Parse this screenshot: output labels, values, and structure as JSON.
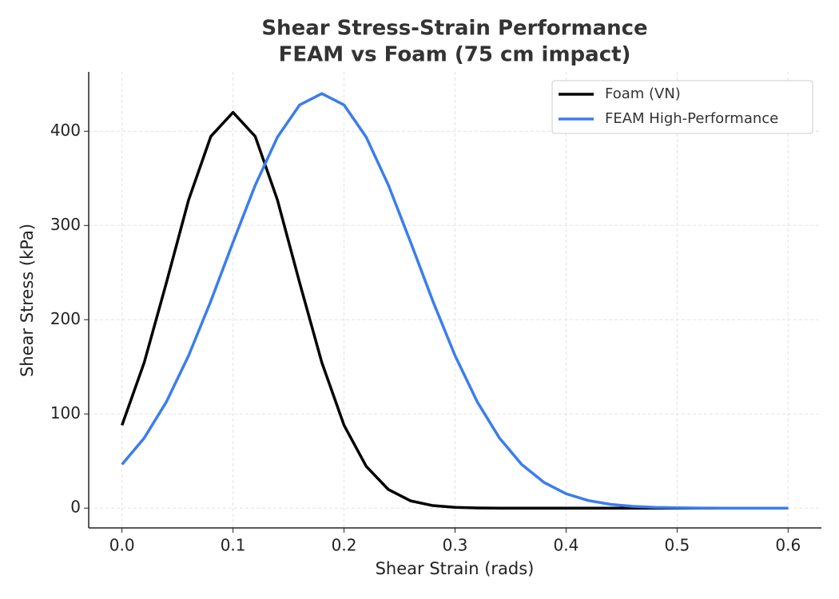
{
  "chart_data": {
    "type": "line",
    "title": "Shear Stress-Strain Performance",
    "subtitle": "FEAM vs Foam (75 cm impact)",
    "x_label": "Shear Strain (rads)",
    "y_label": "Shear Stress (kPa)",
    "x": [
      0,
      0.02,
      0.04,
      0.06,
      0.08,
      0.1,
      0.12,
      0.14,
      0.16,
      0.18,
      0.2,
      0.22,
      0.24,
      0.26,
      0.28,
      0.3,
      0.32,
      0.34,
      0.36,
      0.38,
      0.4,
      0.42,
      0.44,
      0.46,
      0.48,
      0.5,
      0.52,
      0.54,
      0.56,
      0.58,
      0.6
    ],
    "series": [
      {
        "name": "Foam (VN)",
        "color": "#000000",
        "values": [
          88,
          154.5,
          239.3,
          327.1,
          394.5,
          420,
          394.5,
          327.1,
          239.3,
          154.5,
          88,
          44.3,
          19.7,
          7.7,
          2.7,
          0.8,
          0.2,
          0,
          0,
          0,
          0,
          0,
          0,
          0,
          0,
          0,
          0,
          0,
          0,
          0,
          0
        ]
      },
      {
        "name": "FEAM High-Performance",
        "color": "#3b7ded",
        "values": [
          46.4,
          74.4,
          112.8,
          161.9,
          219.7,
          282.1,
          342.7,
          393.7,
          427.9,
          440,
          427.9,
          393.7,
          342.7,
          282.1,
          219.7,
          161.9,
          112.8,
          74.4,
          46.4,
          27.4,
          15.3,
          8.1,
          4,
          1.9,
          0.8,
          0.4,
          0.1,
          0,
          0,
          0,
          0
        ]
      }
    ],
    "xlim": [
      -0.03,
      0.63
    ],
    "ylim": [
      -21,
      463
    ],
    "xticks": [
      {
        "value": 0,
        "label": "0.0"
      },
      0.1,
      0.2,
      0.3,
      0.4,
      0.5,
      0.6
    ],
    "yticks": [
      0,
      100,
      200,
      300,
      400
    ],
    "grid": true,
    "legend": "upper-right"
  }
}
